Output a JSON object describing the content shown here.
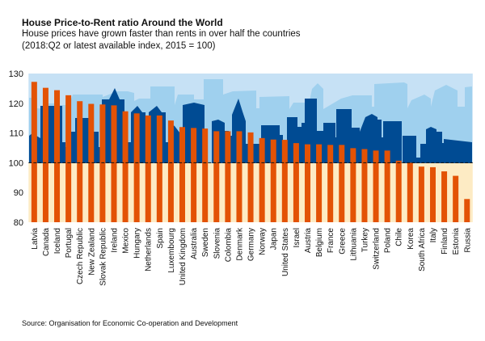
{
  "chart_data": {
    "type": "bar",
    "title": "House Price-to-Rent ratio Around the World",
    "subtitle": [
      "House prices have grown faster than rents in over half the countries",
      "(2018:Q2 or latest available index, 2015 = 100)"
    ],
    "xlabel": "",
    "ylabel": "",
    "ylim": [
      80,
      130
    ],
    "yticks": [
      80,
      90,
      100,
      110,
      120,
      130
    ],
    "reference_line": 100,
    "grid": false,
    "categories": [
      "Latvia",
      "Canada",
      "Iceland",
      "Portugal",
      "Czech Republic",
      "New Zealand",
      "Slovak Republic",
      "Ireland",
      "Mexico",
      "Hungary",
      "Netherlands",
      "Spain",
      "Luxembourg",
      "United Kingdom",
      "Australia",
      "Sweden",
      "Slovenia",
      "Colombia",
      "Denmark",
      "Germany",
      "Norway",
      "Japan",
      "United States",
      "Israel",
      "Austria",
      "Belgium",
      "France",
      "Greece",
      "Lithuania",
      "Turkey",
      "Switzerland",
      "Poland",
      "Chile",
      "Korea",
      "South Africa",
      "Italy",
      "Finland",
      "Estonia",
      "Russia"
    ],
    "values": [
      127.2,
      125.2,
      124.4,
      122.7,
      120.7,
      119.8,
      119.6,
      119.3,
      117.3,
      116.6,
      115.9,
      115.9,
      114.2,
      112.0,
      111.7,
      111.5,
      110.6,
      110.6,
      110.6,
      110.2,
      108.3,
      107.8,
      107.7,
      106.6,
      106.2,
      106.2,
      106.0,
      106.0,
      104.9,
      104.6,
      104.1,
      104.1,
      100.7,
      100.0,
      98.7,
      98.5,
      97.1,
      95.6,
      87.8
    ],
    "colors": {
      "bar": "#e35205",
      "sky": "#c6e1f5",
      "skyline_light": "#9fd0ee",
      "skyline_dark": "#004b93",
      "below": "#fdebc4"
    }
  },
  "source": "Source: Organisation for Economic Co-operation and Development"
}
